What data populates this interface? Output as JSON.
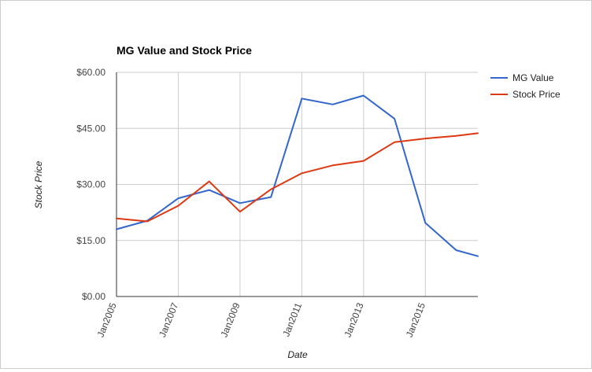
{
  "chart_data": {
    "type": "line",
    "title": "MG Value and Stock Price",
    "xlabel": "Date",
    "ylabel": "Stock Price",
    "ylim": [
      0,
      60
    ],
    "xlim": [
      2005,
      2016.7
    ],
    "y_ticks": [
      0,
      15,
      30,
      45,
      60
    ],
    "y_tick_labels": [
      "$0.00",
      "$15.00",
      "$30.00",
      "$45.00",
      "$60.00"
    ],
    "x_ticks": [
      2005,
      2007,
      2009,
      2011,
      2013,
      2015
    ],
    "x_tick_labels": [
      "Jan2005",
      "Jan2007",
      "Jan2009",
      "Jan2011",
      "Jan2013",
      "Jan2015"
    ],
    "grid": true,
    "legend_position": "right",
    "series": [
      {
        "name": "MG Value",
        "color": "#3366cc",
        "x": [
          2005,
          2006,
          2007,
          2008,
          2009,
          2010,
          2011,
          2012,
          2013,
          2014,
          2015,
          2016,
          2016.7
        ],
        "values": [
          18.0,
          20.3,
          26.3,
          28.5,
          25.0,
          26.6,
          53.0,
          51.4,
          53.8,
          47.6,
          19.7,
          12.4,
          10.8
        ]
      },
      {
        "name": "Stock Price",
        "color": "#dc3912",
        "x": [
          2005,
          2006,
          2007,
          2008,
          2009,
          2010,
          2011,
          2012,
          2013,
          2014,
          2015,
          2016,
          2016.7
        ],
        "values": [
          20.9,
          20.1,
          24.3,
          30.8,
          22.7,
          28.7,
          33.0,
          35.1,
          36.3,
          41.3,
          42.3,
          43.0,
          43.7
        ]
      }
    ]
  }
}
